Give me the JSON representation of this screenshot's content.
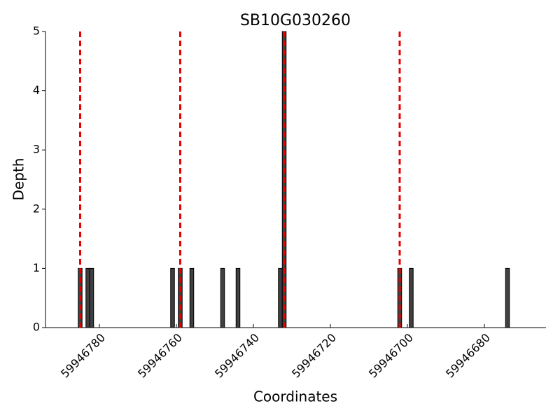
{
  "chart_data": {
    "type": "bar",
    "title": "SB10G030260",
    "x_label": "Coordinates",
    "y_label": "Depth",
    "x": [
      59946785,
      59946783,
      59946782,
      59946761,
      59946759,
      59946756,
      59946748,
      59946744,
      59946733,
      59946732,
      59946702,
      59946699,
      59946674
    ],
    "values": [
      1,
      1,
      1,
      1,
      1,
      1,
      1,
      1,
      1,
      5,
      1,
      1,
      1
    ],
    "bar_width": 1,
    "color": "#404040",
    "vlines": [
      59946785,
      59946759,
      59946732,
      59946702
    ],
    "vline_color": "#e60000",
    "xlim": [
      59946794,
      59946664
    ],
    "xticks": [
      59946780,
      59946760,
      59946740,
      59946720,
      59946700,
      59946680
    ],
    "ylim": [
      0,
      5
    ],
    "yticks": [
      0,
      1,
      2,
      3,
      4,
      5
    ],
    "grid": false
  }
}
